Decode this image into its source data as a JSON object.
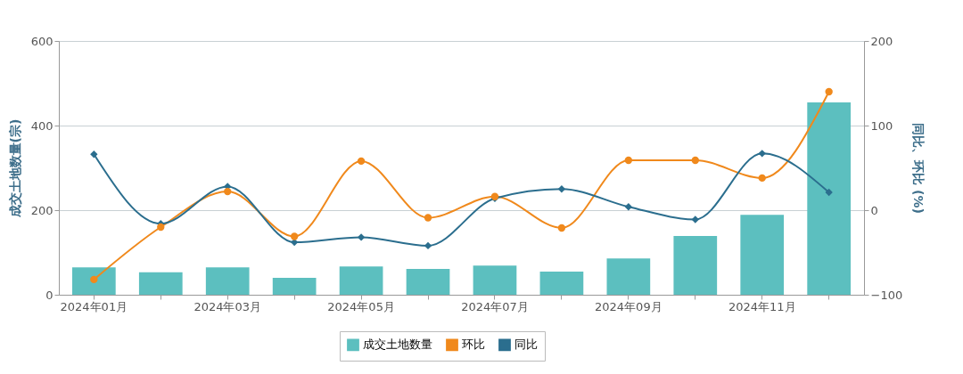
{
  "chart_data": {
    "type": "bar",
    "ylabel": "成交土地数量(宗)",
    "y2label": "同比、环比 (%)",
    "categories": [
      "2024年01月",
      null,
      "2024年03月",
      null,
      "2024年05月",
      null,
      "2024年07月",
      null,
      "2024年09月",
      null,
      "2024年11月",
      null
    ],
    "series": [
      {
        "name": "成交土地数量",
        "color": "#5cbfbf",
        "values": [
          65,
          53,
          65,
          40,
          67,
          61,
          69,
          55,
          86,
          139,
          189,
          455
        ]
      },
      {
        "name": "环比",
        "type": "line",
        "axis": "y2",
        "marker": "circle",
        "color": "#f0891c",
        "values": [
          -82,
          -20,
          22,
          -31,
          58,
          -9,
          16,
          -21,
          59,
          59,
          38,
          140
        ]
      },
      {
        "name": "同比",
        "type": "line",
        "axis": "y2",
        "marker": "diamond",
        "color": "#2b6e8e",
        "values": [
          66,
          -16,
          28,
          -38,
          -32,
          -42,
          14,
          25,
          4,
          -11,
          67,
          21
        ]
      }
    ],
    "ylim": [
      0,
      600
    ],
    "yticks": [
      0,
      200,
      400,
      600
    ],
    "y2lim": [
      -100,
      200
    ],
    "y2ticks": [
      -100,
      0,
      100,
      200
    ],
    "grid": "y",
    "legend": "bottom",
    "line_style": "solid"
  }
}
